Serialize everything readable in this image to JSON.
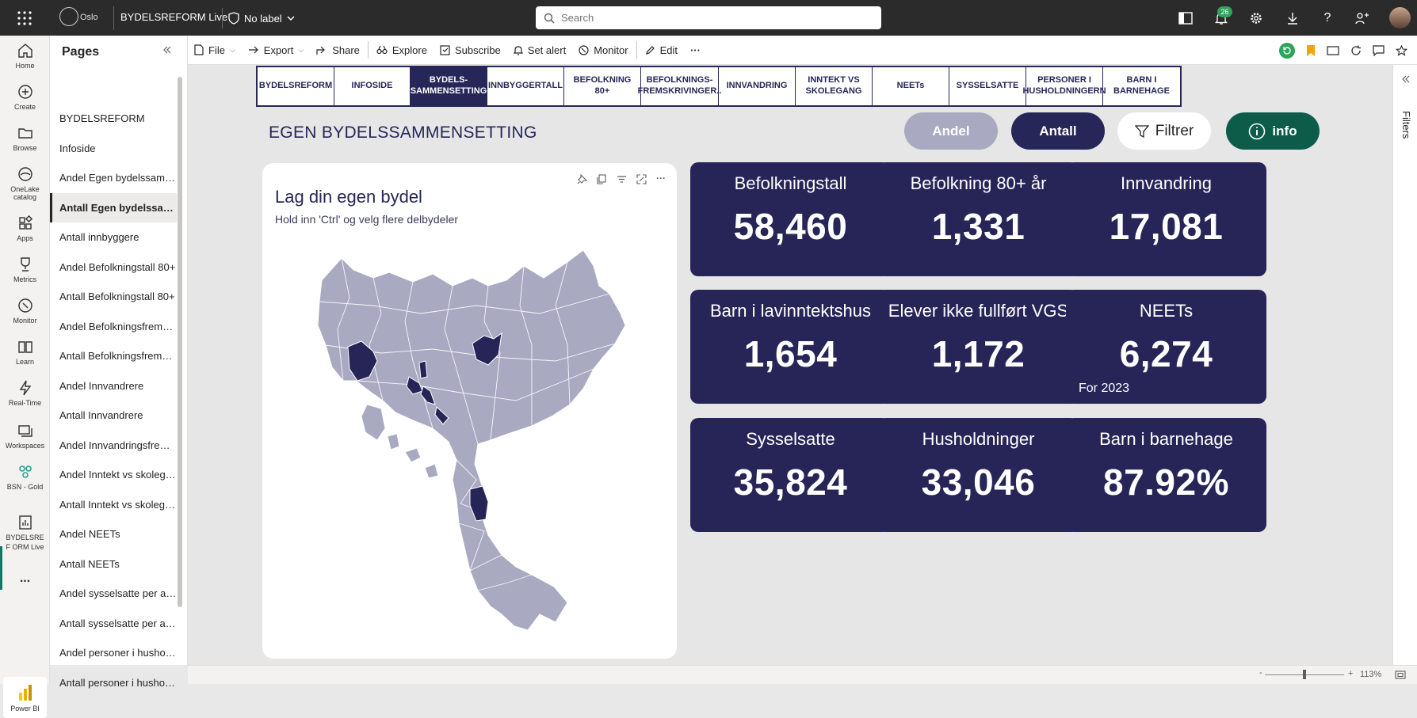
{
  "topbar": {
    "org": "Oslo",
    "report_name": "BYDELSREFORM Live",
    "sensitivity_label": "No label",
    "search_placeholder": "Search",
    "notification_count": "26"
  },
  "leftnav": {
    "items": [
      {
        "label": "Home",
        "icon": "home-icon"
      },
      {
        "label": "Create",
        "icon": "plus-circle-icon"
      },
      {
        "label": "Browse",
        "icon": "folder-icon"
      },
      {
        "label": "OneLake catalog",
        "icon": "onelake-icon"
      },
      {
        "label": "Apps",
        "icon": "apps-icon"
      },
      {
        "label": "Metrics",
        "icon": "trophy-icon"
      },
      {
        "label": "Monitor",
        "icon": "monitor-icon"
      },
      {
        "label": "Learn",
        "icon": "book-icon"
      },
      {
        "label": "Real-Time",
        "icon": "lightning-icon"
      },
      {
        "label": "Workspaces",
        "icon": "workspaces-icon"
      },
      {
        "label": "BSN - Gold",
        "icon": "people-icon"
      },
      {
        "label": "BYDELSREF ORM Live",
        "icon": "report-icon"
      }
    ],
    "more": "...",
    "brand": "Power BI"
  },
  "pages_pane": {
    "title": "Pages",
    "items": [
      "BYDELSREFORM",
      "Infoside",
      "Andel Egen bydelssammensetting",
      "Antall Egen bydelssammensetting",
      "Antall innbyggere",
      "Andel Befolkningstall 80+",
      "Antall Befolkningstall 80+",
      "Andel Befolkningsfremskrivinger",
      "Antall Befolkningsfremskrivinger",
      "Andel Innvandrere",
      "Antall Innvandrere",
      "Andel Innvandringsfremskrivinger",
      "Andel Inntekt vs skolegang",
      "Antall Inntekt vs skolegang",
      "Andel NEETs",
      "Antall NEETs",
      "Andel sysselsatte per alder",
      "Antall sysselsatte per alder",
      "Andel personer i husholdningen",
      "Antall personer i husholdningen"
    ],
    "active_index": 3
  },
  "cmdbar": {
    "file": "File",
    "export": "Export",
    "share": "Share",
    "explore": "Explore",
    "subscribe": "Subscribe",
    "set_alert": "Set alert",
    "monitor": "Monitor",
    "edit": "Edit",
    "more": "···"
  },
  "report": {
    "tabs": [
      {
        "label": "BYDELSREFORM",
        "active": false
      },
      {
        "label": "INFOSIDE",
        "active": false
      },
      {
        "label": "BYDELS-\nSAMMENSETTING",
        "active": true
      },
      {
        "label": "INNBYGGERTALL",
        "active": false
      },
      {
        "label": "BEFOLKNING 80+",
        "active": false
      },
      {
        "label": "BEFOLKNINGS-\nFREMSKRIVINGER..",
        "active": false
      },
      {
        "label": "INNVANDRING",
        "active": false
      },
      {
        "label": "INNTEKT VS\nSKOLEGANG",
        "active": false
      },
      {
        "label": "NEETs",
        "active": false
      },
      {
        "label": "SYSSELSATTE",
        "active": false
      },
      {
        "label": "PERSONER I\nHUSHOLDNINGERN",
        "active": false
      },
      {
        "label": "BARN I\nBARNEHAGE",
        "active": false
      }
    ],
    "heading": "EGEN BYDELSSAMMENSETTING",
    "buttons": {
      "andel": "Andel",
      "antall": "Antall",
      "filtrer": "Filtrer",
      "info": "info"
    },
    "colors": {
      "navy": "#272558",
      "lavender": "#a9a9c2",
      "teal": "#0d5c4a",
      "map_fill": "#a9a9c2",
      "map_selected": "#272558"
    },
    "map": {
      "title": "Lag din egen bydel",
      "subtitle": "Hold inn 'Ctrl' og velg flere delbydeler"
    },
    "kpis": [
      {
        "label": "Befolkningstall",
        "value": "58,460",
        "note": ""
      },
      {
        "label": "Befolkning 80+ år",
        "value": "1,331",
        "note": ""
      },
      {
        "label": "Innvandring",
        "value": "17,081",
        "note": ""
      },
      {
        "label": "Barn i lavinntektshus",
        "value": "1,654",
        "note": ""
      },
      {
        "label": "Elever ikke fullført VGS",
        "value": "1,172",
        "note": ""
      },
      {
        "label": "NEETs",
        "value": "6,274",
        "note": "For 2023"
      },
      {
        "label": "Sysselsatte",
        "value": "35,824",
        "note": ""
      },
      {
        "label": "Husholdninger",
        "value": "33,046",
        "note": ""
      },
      {
        "label": "Barn i barnehage",
        "value": "87.92%",
        "note": ""
      }
    ]
  },
  "filters_pane": {
    "label": "Filters"
  },
  "status": {
    "zoom": "113%"
  }
}
